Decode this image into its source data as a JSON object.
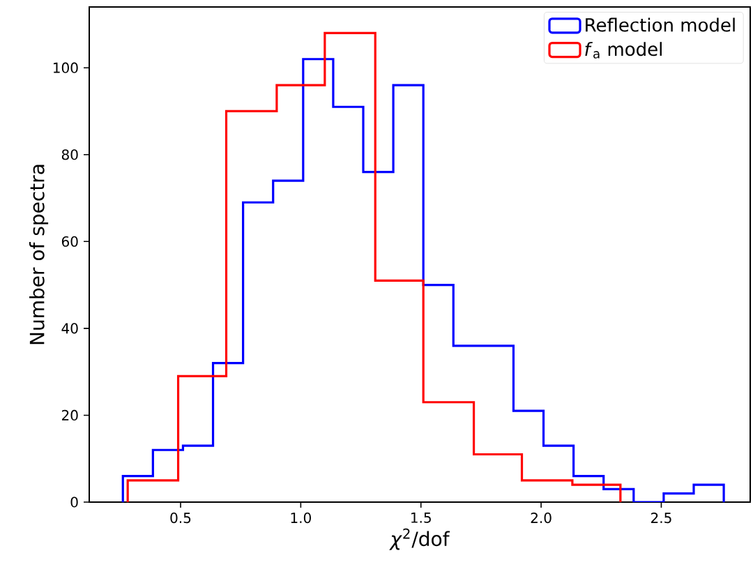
{
  "chart_data": {
    "type": "histogram",
    "xlabel": "*χ*$^{2}$/dof",
    "ylabel": "Number of spectra",
    "bins": [
      0.26,
      0.385,
      0.51,
      0.635,
      0.76,
      0.885,
      1.01,
      1.135,
      1.26,
      1.385,
      1.51,
      1.635,
      1.76,
      1.885,
      2.01,
      2.135,
      2.26,
      2.385,
      2.51,
      2.635,
      2.76
    ],
    "series": [
      {
        "name": "Reflection model",
        "color": "#0000ff",
        "values": [
          6,
          12,
          13,
          32,
          69,
          74,
          102,
          91,
          76,
          96,
          50,
          36,
          36,
          21,
          13,
          6,
          3,
          0,
          2,
          4
        ]
      },
      {
        "name": "*f*$_{a}$ model",
        "color": "#ff0000",
        "type": "histogram",
        "bins": [
          0.28,
          0.49,
          0.69,
          0.9,
          1.1,
          1.31,
          1.51,
          1.72,
          1.92,
          2.13,
          2.33
        ],
        "values": [
          5,
          29,
          90,
          96,
          108,
          51,
          23,
          11,
          5,
          4
        ]
      }
    ],
    "xlim": [
      0.12,
      2.87
    ],
    "ylim": [
      0,
      114
    ],
    "xticks": [
      0.5,
      {
        "value": 1,
        "label": "1.0"
      },
      1.5,
      {
        "value": 2,
        "label": "2.0"
      },
      2.5
    ],
    "yticks": [
      0,
      20,
      40,
      60,
      80,
      100
    ],
    "legend": "top right"
  }
}
